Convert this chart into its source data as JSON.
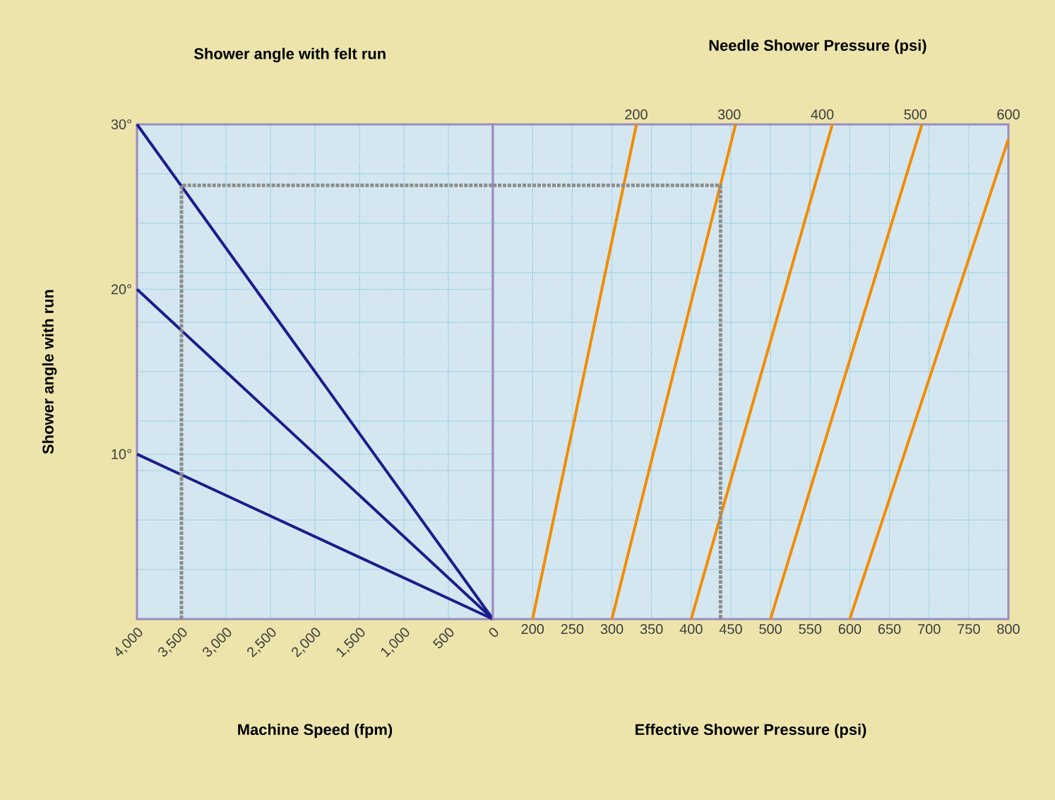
{
  "chart_data": [
    {
      "type": "line",
      "title": "Shower angle with felt run",
      "xlabel": "Machine Speed (fpm)",
      "ylabel": "Shower angle with run",
      "grid": true,
      "xlim": [
        4000,
        0
      ],
      "xticks": [
        {
          "value": 4000,
          "label": "4,000"
        },
        {
          "value": 3500,
          "label": "3,500"
        },
        {
          "value": 3000,
          "label": "3,000"
        },
        {
          "value": 2500,
          "label": "2,500"
        },
        {
          "value": 2000,
          "label": "2,000"
        },
        {
          "value": 1500,
          "label": "1,500"
        },
        {
          "value": 1000,
          "label": "1,000"
        },
        500,
        0
      ],
      "ylim": [
        0,
        30
      ],
      "yticks": [
        {
          "value": 3,
          "label": null
        },
        {
          "value": 6,
          "label": null
        },
        {
          "value": 9,
          "label": null
        },
        {
          "value": 10,
          "label": "10°"
        },
        {
          "value": 12,
          "label": null
        },
        {
          "value": 15,
          "label": null
        },
        {
          "value": 18,
          "label": null
        },
        {
          "value": 20,
          "label": "20°"
        },
        {
          "value": 21,
          "label": null
        },
        {
          "value": 24,
          "label": null
        },
        {
          "value": 27,
          "label": null
        },
        {
          "value": 30,
          "label": "30°"
        }
      ],
      "series": [
        {
          "color": "#1c1c8c",
          "x": [
            4000,
            0
          ],
          "values": [
            10,
            0
          ]
        },
        {
          "color": "#1c1c8c",
          "x": [
            4000,
            0
          ],
          "values": [
            20,
            0
          ]
        },
        {
          "color": "#1c1c8c",
          "x": [
            4000,
            0
          ],
          "values": [
            30,
            0
          ]
        },
        {
          "color": "#8c8c8c",
          "line_style": "dotted",
          "x": [
            3500,
            3500,
            0
          ],
          "values": [
            0,
            26.3,
            26.3
          ]
        }
      ]
    },
    {
      "type": "line",
      "xlabel": "Effective Shower Pressure (psi)",
      "x2label": "Needle Shower Pressure (psi)",
      "grid": true,
      "tick_labels": "x",
      "xlim": [
        150,
        800
      ],
      "xticks": [
        200,
        250,
        300,
        350,
        400,
        450,
        500,
        550,
        600,
        650,
        700,
        750,
        800
      ],
      "x2lim": [
        46,
        600
      ],
      "x2ticks": [
        200,
        300,
        400,
        500,
        600
      ],
      "ylim": [
        0,
        30
      ],
      "yticks": [
        {
          "value": 3,
          "label": null
        },
        {
          "value": 6,
          "label": null
        },
        {
          "value": 9,
          "label": null
        },
        {
          "value": 12,
          "label": null
        },
        {
          "value": 15,
          "label": null
        },
        {
          "value": 18,
          "label": null
        },
        {
          "value": 21,
          "label": null
        },
        {
          "value": 24,
          "label": null
        },
        {
          "value": 27,
          "label": null
        },
        {
          "value": 30,
          "label": null
        }
      ],
      "series": [
        {
          "color": "#f28c00",
          "x": [
            200,
            331
          ],
          "values": [
            0,
            30
          ]
        },
        {
          "color": "#f28c00",
          "x": [
            300,
            456
          ],
          "values": [
            0,
            30
          ]
        },
        {
          "color": "#f28c00",
          "x": [
            400,
            578
          ],
          "values": [
            0,
            30
          ]
        },
        {
          "color": "#f28c00",
          "x": [
            500,
            691
          ],
          "values": [
            0,
            30
          ]
        },
        {
          "color": "#f28c00",
          "x": [
            600,
            800
          ],
          "values": [
            0,
            29.1
          ]
        },
        {
          "color": "#8c8c8c",
          "line_style": "dotted",
          "x": [
            150,
            437,
            437
          ],
          "values": [
            26.3,
            26.3,
            0
          ]
        }
      ]
    }
  ]
}
